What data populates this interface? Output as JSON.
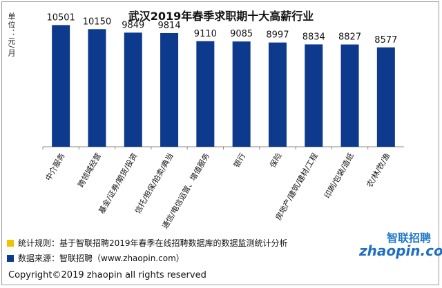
{
  "title": "武汉2019年春季求职期十大高薪行业",
  "unit_label": "单位：元/月",
  "chart_data": {
    "type": "bar",
    "title": "武汉2019年春季求职期十大高薪行业",
    "ylabel": "单位：元/月",
    "xlabel": "",
    "categories": [
      "中介服务",
      "跨领域经营",
      "基金/证券/期货/投资",
      "信托/担保/拍卖/典当",
      "通信/电信运营、增值服务",
      "银行",
      "保险",
      "房地产/建筑/建材/工程",
      "印刷/包装/造纸",
      "农/林/牧/渔"
    ],
    "values": [
      10501,
      10150,
      9849,
      9814,
      9110,
      9085,
      8997,
      8834,
      8827,
      8577
    ],
    "ylim": [
      0,
      11000
    ],
    "bar_color": "#0d3a8c",
    "grid": false
  },
  "footnotes": [
    {
      "color": "#f2c200",
      "text": "统计规则：基于智联招聘2019年春季在线招聘数据库的数据监测统计分析"
    },
    {
      "color": "#0d3a8c",
      "text": "数据来源：智联招聘（www.zhaopin.com）"
    }
  ],
  "copyright": "Copyright©2019 zhaopin all rights reserved",
  "logo": {
    "cn": "智联招聘",
    "en": "zhaopin.com"
  }
}
